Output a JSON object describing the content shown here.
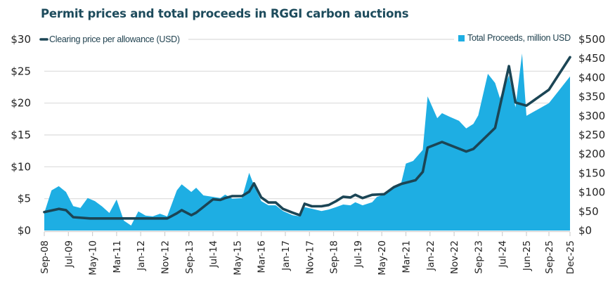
{
  "chart_data": {
    "type": "line+area",
    "title": "Permit prices and total proceeds in RGGI carbon auctions",
    "x_tick_labels": [
      "Sep-08",
      "Jul-09",
      "May-10",
      "Mar-11",
      "Jan-12",
      "Nov-12",
      "Sep-13",
      "Jul-14",
      "May-15",
      "Mar-16",
      "Jan-17",
      "Nov-17",
      "Sep-18",
      "Jul-19",
      "May-20",
      "Mar-21",
      "Jan-22",
      "Nov-22",
      "Sep-23",
      "Jul-24",
      "Jun-25",
      "Sep-25",
      "Dec-25"
    ],
    "y_left": {
      "ylim": [
        0,
        30
      ],
      "ticks": [
        "$0",
        "$5",
        "$10",
        "$15",
        "$20",
        "$25",
        "$30"
      ],
      "values": [
        0,
        5,
        10,
        15,
        20,
        25,
        30
      ]
    },
    "y_right": {
      "ylim": [
        0,
        500
      ],
      "ticks": [
        "$0",
        "$50",
        "$100",
        "$150",
        "$200",
        "$250",
        "$300",
        "$350",
        "$400",
        "$450",
        "$500"
      ],
      "values": [
        0,
        50,
        100,
        150,
        200,
        250,
        300,
        350,
        400,
        450,
        500
      ]
    },
    "grid": true,
    "legend": [
      {
        "position": "top-left",
        "label": "Clearing price per allowance (USD)"
      },
      {
        "position": "top-right",
        "label": "Total Proceeds, million USD"
      }
    ],
    "colors": {
      "price": "#1b4555",
      "proceeds": "#1eaee3",
      "title": "#1d4b5c"
    },
    "series": [
      {
        "name": "Clearing price per allowance (USD)",
        "type": "line",
        "axis": "left",
        "points": [
          [
            "2008-09",
            2.9
          ],
          [
            "2009-03",
            3.4
          ],
          [
            "2009-06",
            3.2
          ],
          [
            "2009-09",
            2.1
          ],
          [
            "2010-04",
            1.9
          ],
          [
            "2010-06",
            1.9
          ],
          [
            "2012-12",
            1.9
          ],
          [
            "2013-04",
            2.7
          ],
          [
            "2013-06",
            3.2
          ],
          [
            "2013-10",
            2.4
          ],
          [
            "2013-12",
            2.8
          ],
          [
            "2014-07",
            4.9
          ],
          [
            "2014-10",
            4.8
          ],
          [
            "2014-12",
            5.1
          ],
          [
            "2015-03",
            5.4
          ],
          [
            "2015-07",
            5.4
          ],
          [
            "2015-10",
            6.1
          ],
          [
            "2015-12",
            7.4
          ],
          [
            "2016-03",
            5.2
          ],
          [
            "2016-06",
            4.4
          ],
          [
            "2016-09",
            4.4
          ],
          [
            "2016-12",
            3.4
          ],
          [
            "2017-04",
            2.8
          ],
          [
            "2017-07",
            2.4
          ],
          [
            "2017-09",
            4.2
          ],
          [
            "2017-12",
            3.8
          ],
          [
            "2018-04",
            3.8
          ],
          [
            "2018-07",
            4.0
          ],
          [
            "2018-10",
            4.6
          ],
          [
            "2019-01",
            5.3
          ],
          [
            "2019-04",
            5.2
          ],
          [
            "2019-06",
            5.6
          ],
          [
            "2019-09",
            5.1
          ],
          [
            "2020-01",
            5.6
          ],
          [
            "2020-06",
            5.7
          ],
          [
            "2020-10",
            6.8
          ],
          [
            "2021-01",
            7.3
          ],
          [
            "2021-04",
            7.6
          ],
          [
            "2021-07",
            7.9
          ],
          [
            "2021-10",
            9.2
          ],
          [
            "2021-12",
            13.0
          ],
          [
            "2022-06",
            13.9
          ],
          [
            "2023-04",
            12.4
          ],
          [
            "2023-07",
            12.8
          ],
          [
            "2024-04",
            16.1
          ],
          [
            "2024-10",
            25.8
          ],
          [
            "2025-01",
            20.1
          ],
          [
            "2025-06",
            19.6
          ],
          [
            "2025-09",
            22.1
          ],
          [
            "2025-12",
            27.2
          ]
        ]
      },
      {
        "name": "Total Proceeds, million USD",
        "type": "area",
        "axis": "right",
        "points": [
          [
            "2008-09",
            46
          ],
          [
            "2008-12",
            105
          ],
          [
            "2009-03",
            116
          ],
          [
            "2009-06",
            101
          ],
          [
            "2009-09",
            64
          ],
          [
            "2009-12",
            59
          ],
          [
            "2010-03",
            85
          ],
          [
            "2010-06",
            77
          ],
          [
            "2010-09",
            63
          ],
          [
            "2010-12",
            46
          ],
          [
            "2011-03",
            81
          ],
          [
            "2011-06",
            26
          ],
          [
            "2011-09",
            13
          ],
          [
            "2011-12",
            50
          ],
          [
            "2012-03",
            39
          ],
          [
            "2012-06",
            37
          ],
          [
            "2012-09",
            44
          ],
          [
            "2012-12",
            37
          ],
          [
            "2013-04",
            105
          ],
          [
            "2013-06",
            121
          ],
          [
            "2013-10",
            101
          ],
          [
            "2013-12",
            112
          ],
          [
            "2014-03",
            92
          ],
          [
            "2014-07",
            88
          ],
          [
            "2014-10",
            85
          ],
          [
            "2014-12",
            94
          ],
          [
            "2015-03",
            83
          ],
          [
            "2015-07",
            85
          ],
          [
            "2015-10",
            151
          ],
          [
            "2015-12",
            118
          ],
          [
            "2016-03",
            77
          ],
          [
            "2016-06",
            66
          ],
          [
            "2016-09",
            66
          ],
          [
            "2016-12",
            51
          ],
          [
            "2017-04",
            40
          ],
          [
            "2017-07",
            37
          ],
          [
            "2017-09",
            61
          ],
          [
            "2017-12",
            57
          ],
          [
            "2018-04",
            51
          ],
          [
            "2018-07",
            55
          ],
          [
            "2018-10",
            61
          ],
          [
            "2019-01",
            68
          ],
          [
            "2019-04",
            66
          ],
          [
            "2019-06",
            74
          ],
          [
            "2019-09",
            66
          ],
          [
            "2020-01",
            74
          ],
          [
            "2020-03",
            88
          ],
          [
            "2020-06",
            94
          ],
          [
            "2020-10",
            112
          ],
          [
            "2021-01",
            123
          ],
          [
            "2021-03",
            175
          ],
          [
            "2021-06",
            182
          ],
          [
            "2021-10",
            211
          ],
          [
            "2021-12",
            351
          ],
          [
            "2022-04",
            294
          ],
          [
            "2022-06",
            307
          ],
          [
            "2022-09",
            298
          ],
          [
            "2023-01",
            287
          ],
          [
            "2023-04",
            267
          ],
          [
            "2023-07",
            279
          ],
          [
            "2023-09",
            301
          ],
          [
            "2024-01",
            410
          ],
          [
            "2024-04",
            386
          ],
          [
            "2024-06",
            346
          ],
          [
            "2024-10",
            406
          ],
          [
            "2025-01",
            322
          ],
          [
            "2025-04",
            463
          ],
          [
            "2025-06",
            300
          ],
          [
            "2025-09",
            333
          ],
          [
            "2025-12",
            403
          ]
        ]
      }
    ]
  }
}
